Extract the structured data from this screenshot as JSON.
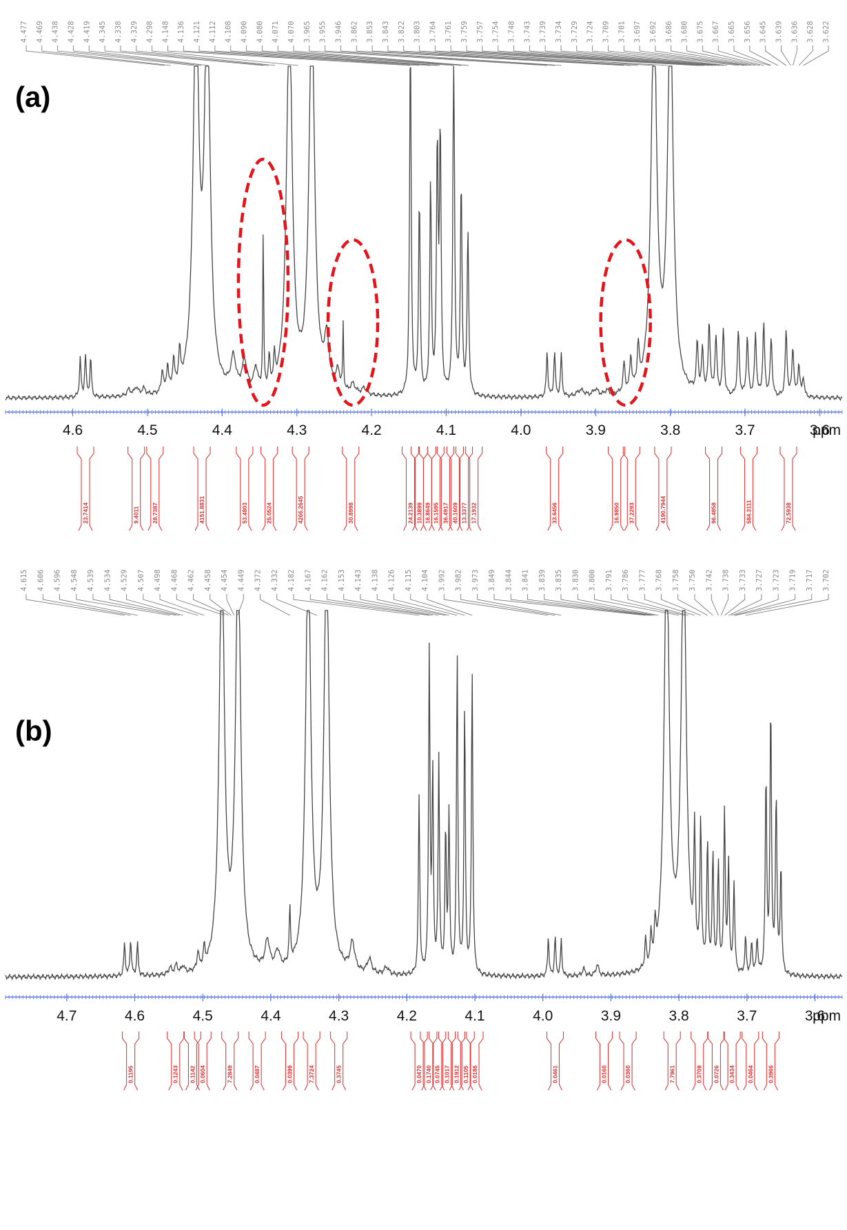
{
  "figure": {
    "trace_color": "#444444",
    "axis_color": "#5b78e8",
    "integral_color": "#e03a3a",
    "highlight_color": "#e3141b"
  },
  "chart_data": [
    {
      "type": "line",
      "panel_label": "(a)",
      "xlabel": "ppm",
      "xlim": [
        4.69,
        3.57
      ],
      "x_reversed": true,
      "x_ticks": [
        4.6,
        4.5,
        4.4,
        4.3,
        4.2,
        4.1,
        4.0,
        3.9,
        3.8,
        3.7,
        3.6
      ],
      "x_tick_labels": [
        "4.6",
        "4.5",
        "4.4",
        "4.3",
        "4.2",
        "4.1",
        "4.0",
        "3.9",
        "3.8",
        "3.7",
        "3.6"
      ],
      "peak_labels": [
        "4.477",
        "4.469",
        "4.438",
        "4.428",
        "4.419",
        "4.345",
        "4.338",
        "4.329",
        "4.298",
        "4.148",
        "4.136",
        "4.121",
        "4.112",
        "4.108",
        "4.090",
        "4.080",
        "4.071",
        "4.070",
        "3.965",
        "3.955",
        "3.946",
        "3.862",
        "3.853",
        "3.843",
        "3.822",
        "3.803",
        "3.764",
        "3.761",
        "3.759",
        "3.757",
        "3.754",
        "3.748",
        "3.743",
        "3.739",
        "3.734",
        "3.729",
        "3.724",
        "3.709",
        "3.701",
        "3.697",
        "3.692",
        "3.686",
        "3.680",
        "3.675",
        "3.667",
        "3.665",
        "3.656",
        "3.645",
        "3.639",
        "3.636",
        "3.628",
        "3.622"
      ],
      "peaks": [
        {
          "x": 4.59,
          "h": 0.12,
          "w": 0.0012
        },
        {
          "x": 4.583,
          "h": 0.13,
          "w": 0.0012
        },
        {
          "x": 4.576,
          "h": 0.12,
          "w": 0.0012
        },
        {
          "x": 4.525,
          "h": 0.02,
          "w": 0.003
        },
        {
          "x": 4.515,
          "h": 0.025,
          "w": 0.003
        },
        {
          "x": 4.505,
          "h": 0.02,
          "w": 0.003
        },
        {
          "x": 4.48,
          "h": 0.07,
          "w": 0.0015
        },
        {
          "x": 4.473,
          "h": 0.08,
          "w": 0.0015
        },
        {
          "x": 4.465,
          "h": 0.09,
          "w": 0.0015
        },
        {
          "x": 4.457,
          "h": 0.1,
          "w": 0.0015
        },
        {
          "x": 4.435,
          "h": 1.2,
          "w": 0.0045
        },
        {
          "x": 4.42,
          "h": 1.2,
          "w": 0.0045
        },
        {
          "x": 4.385,
          "h": 0.1,
          "w": 0.004
        },
        {
          "x": 4.37,
          "h": 0.09,
          "w": 0.004
        },
        {
          "x": 4.355,
          "h": 0.07,
          "w": 0.003
        },
        {
          "x": 4.345,
          "h": 0.5,
          "w": 0.0007
        },
        {
          "x": 4.337,
          "h": 0.09,
          "w": 0.0012
        },
        {
          "x": 4.33,
          "h": 0.08,
          "w": 0.0012
        },
        {
          "x": 4.31,
          "h": 1.2,
          "w": 0.0045
        },
        {
          "x": 4.28,
          "h": 1.2,
          "w": 0.0045
        },
        {
          "x": 4.26,
          "h": 0.15,
          "w": 0.004
        },
        {
          "x": 4.245,
          "h": 0.06,
          "w": 0.003
        },
        {
          "x": 4.238,
          "h": 0.2,
          "w": 0.0007
        },
        {
          "x": 4.225,
          "h": 0.03,
          "w": 0.004
        },
        {
          "x": 4.21,
          "h": 0.02,
          "w": 0.004
        },
        {
          "x": 4.148,
          "h": 1.1,
          "w": 0.0013
        },
        {
          "x": 4.136,
          "h": 0.6,
          "w": 0.0013
        },
        {
          "x": 4.121,
          "h": 0.65,
          "w": 0.0013
        },
        {
          "x": 4.112,
          "h": 0.75,
          "w": 0.0013
        },
        {
          "x": 4.108,
          "h": 0.8,
          "w": 0.0013
        },
        {
          "x": 4.09,
          "h": 1.1,
          "w": 0.0013
        },
        {
          "x": 4.08,
          "h": 0.65,
          "w": 0.0013
        },
        {
          "x": 4.071,
          "h": 0.5,
          "w": 0.0013
        },
        {
          "x": 3.965,
          "h": 0.14,
          "w": 0.0012
        },
        {
          "x": 3.955,
          "h": 0.14,
          "w": 0.0012
        },
        {
          "x": 3.946,
          "h": 0.13,
          "w": 0.0012
        },
        {
          "x": 3.92,
          "h": 0.02,
          "w": 0.006
        },
        {
          "x": 3.9,
          "h": 0.02,
          "w": 0.004
        },
        {
          "x": 3.885,
          "h": 0.015,
          "w": 0.003
        },
        {
          "x": 3.862,
          "h": 0.09,
          "w": 0.0015
        },
        {
          "x": 3.853,
          "h": 0.1,
          "w": 0.0015
        },
        {
          "x": 3.843,
          "h": 0.12,
          "w": 0.0015
        },
        {
          "x": 3.822,
          "h": 1.2,
          "w": 0.0045
        },
        {
          "x": 3.8,
          "h": 1.2,
          "w": 0.0045
        },
        {
          "x": 3.764,
          "h": 0.15,
          "w": 0.0015
        },
        {
          "x": 3.757,
          "h": 0.13,
          "w": 0.0015
        },
        {
          "x": 3.748,
          "h": 0.22,
          "w": 0.0015
        },
        {
          "x": 3.739,
          "h": 0.18,
          "w": 0.0015
        },
        {
          "x": 3.729,
          "h": 0.2,
          "w": 0.0015
        },
        {
          "x": 3.709,
          "h": 0.2,
          "w": 0.0015
        },
        {
          "x": 3.697,
          "h": 0.18,
          "w": 0.0015
        },
        {
          "x": 3.686,
          "h": 0.19,
          "w": 0.0015
        },
        {
          "x": 3.675,
          "h": 0.22,
          "w": 0.0015
        },
        {
          "x": 3.665,
          "h": 0.18,
          "w": 0.0015
        },
        {
          "x": 3.645,
          "h": 0.2,
          "w": 0.0015
        },
        {
          "x": 3.636,
          "h": 0.15,
          "w": 0.0015
        },
        {
          "x": 3.628,
          "h": 0.1,
          "w": 0.0015
        },
        {
          "x": 3.622,
          "h": 0.06,
          "w": 0.0015
        }
      ],
      "integrals": [
        {
          "x": 4.583,
          "label": "23.7414"
        },
        {
          "x": 4.515,
          "label": "9.4011"
        },
        {
          "x": 4.49,
          "label": "28.7387"
        },
        {
          "x": 4.427,
          "label": "4151.8831"
        },
        {
          "x": 4.37,
          "label": "53.4803"
        },
        {
          "x": 4.337,
          "label": "25.0524"
        },
        {
          "x": 4.295,
          "label": "4266.2645"
        },
        {
          "x": 4.228,
          "label": "30.8998"
        },
        {
          "x": 4.148,
          "label": "24.2139"
        },
        {
          "x": 4.136,
          "label": "10.3899"
        },
        {
          "x": 4.125,
          "label": "16.8649"
        },
        {
          "x": 4.114,
          "label": "16.1595"
        },
        {
          "x": 4.101,
          "label": "36.4917"
        },
        {
          "x": 4.088,
          "label": "40.1609"
        },
        {
          "x": 4.076,
          "label": "13.3377"
        },
        {
          "x": 4.063,
          "label": "17.1932"
        },
        {
          "x": 3.955,
          "label": "33.6456"
        },
        {
          "x": 3.872,
          "label": "16.9850"
        },
        {
          "x": 3.852,
          "label": "37.2293"
        },
        {
          "x": 3.81,
          "label": "4190.7944"
        },
        {
          "x": 3.742,
          "label": "96.4858"
        },
        {
          "x": 3.695,
          "label": "584.3111"
        },
        {
          "x": 3.642,
          "label": "72.5938"
        }
      ],
      "highlighted_regions": [
        {
          "x_center": 4.345,
          "y_low": 0.0,
          "y_high": 0.72
        },
        {
          "x_center": 4.225,
          "y_low": 0.0,
          "y_high": 0.47
        },
        {
          "x_center": 3.86,
          "y_low": 0.0,
          "y_high": 0.47
        }
      ]
    },
    {
      "type": "line",
      "panel_label": "(b)",
      "xlabel": "ppm",
      "xlim": [
        4.79,
        3.56
      ],
      "x_reversed": true,
      "x_ticks": [
        4.7,
        4.6,
        4.5,
        4.4,
        4.3,
        4.2,
        4.1,
        4.0,
        3.9,
        3.8,
        3.7,
        3.6
      ],
      "x_tick_labels": [
        "4.7",
        "4.6",
        "4.5",
        "4.4",
        "4.3",
        "4.2",
        "4.1",
        "4.0",
        "3.9",
        "3.8",
        "3.7",
        "3.6"
      ],
      "peak_labels": [
        "4.615",
        "4.606",
        "4.596",
        "4.548",
        "4.539",
        "4.534",
        "4.529",
        "4.507",
        "4.498",
        "4.468",
        "4.462",
        "4.458",
        "4.454",
        "4.449",
        "4.372",
        "4.332",
        "4.182",
        "4.167",
        "4.162",
        "4.153",
        "4.143",
        "4.138",
        "4.126",
        "4.115",
        "4.104",
        "3.992",
        "3.982",
        "3.973",
        "3.849",
        "3.844",
        "3.841",
        "3.839",
        "3.835",
        "3.830",
        "3.800",
        "3.791",
        "3.786",
        "3.777",
        "3.768",
        "3.758",
        "3.750",
        "3.742",
        "3.738",
        "3.733",
        "3.727",
        "3.723",
        "3.719",
        "3.717",
        "3.702"
      ],
      "peaks": [
        {
          "x": 4.615,
          "h": 0.09,
          "w": 0.0013
        },
        {
          "x": 4.606,
          "h": 0.1,
          "w": 0.0013
        },
        {
          "x": 4.596,
          "h": 0.09,
          "w": 0.0013
        },
        {
          "x": 4.548,
          "h": 0.02,
          "w": 0.0025
        },
        {
          "x": 4.539,
          "h": 0.025,
          "w": 0.0025
        },
        {
          "x": 4.529,
          "h": 0.02,
          "w": 0.0025
        },
        {
          "x": 4.507,
          "h": 0.05,
          "w": 0.0015
        },
        {
          "x": 4.498,
          "h": 0.05,
          "w": 0.0015
        },
        {
          "x": 4.472,
          "h": 1.2,
          "w": 0.0045
        },
        {
          "x": 4.448,
          "h": 1.2,
          "w": 0.0045
        },
        {
          "x": 4.405,
          "h": 0.08,
          "w": 0.004
        },
        {
          "x": 4.39,
          "h": 0.05,
          "w": 0.004
        },
        {
          "x": 4.372,
          "h": 0.15,
          "w": 0.0012
        },
        {
          "x": 4.345,
          "h": 1.2,
          "w": 0.0045
        },
        {
          "x": 4.318,
          "h": 1.2,
          "w": 0.0045
        },
        {
          "x": 4.28,
          "h": 0.08,
          "w": 0.004
        },
        {
          "x": 4.255,
          "h": 0.04,
          "w": 0.004
        },
        {
          "x": 4.23,
          "h": 0.02,
          "w": 0.004
        },
        {
          "x": 4.182,
          "h": 0.5,
          "w": 0.0012
        },
        {
          "x": 4.167,
          "h": 0.9,
          "w": 0.0012
        },
        {
          "x": 4.162,
          "h": 0.55,
          "w": 0.0012
        },
        {
          "x": 4.153,
          "h": 0.6,
          "w": 0.0012
        },
        {
          "x": 4.143,
          "h": 0.4,
          "w": 0.0012
        },
        {
          "x": 4.138,
          "h": 0.45,
          "w": 0.0012
        },
        {
          "x": 4.126,
          "h": 0.9,
          "w": 0.0012
        },
        {
          "x": 4.115,
          "h": 0.75,
          "w": 0.0012
        },
        {
          "x": 4.104,
          "h": 0.85,
          "w": 0.0012
        },
        {
          "x": 3.992,
          "h": 0.11,
          "w": 0.0012
        },
        {
          "x": 3.982,
          "h": 0.11,
          "w": 0.0012
        },
        {
          "x": 3.973,
          "h": 0.1,
          "w": 0.0012
        },
        {
          "x": 3.94,
          "h": 0.02,
          "w": 0.0025
        },
        {
          "x": 3.92,
          "h": 0.03,
          "w": 0.0025
        },
        {
          "x": 3.849,
          "h": 0.08,
          "w": 0.0013
        },
        {
          "x": 3.841,
          "h": 0.08,
          "w": 0.0013
        },
        {
          "x": 3.835,
          "h": 0.09,
          "w": 0.0013
        },
        {
          "x": 3.818,
          "h": 1.2,
          "w": 0.0045
        },
        {
          "x": 3.793,
          "h": 1.2,
          "w": 0.0045
        },
        {
          "x": 3.777,
          "h": 0.35,
          "w": 0.0013
        },
        {
          "x": 3.768,
          "h": 0.4,
          "w": 0.0013
        },
        {
          "x": 3.758,
          "h": 0.35,
          "w": 0.0013
        },
        {
          "x": 3.75,
          "h": 0.32,
          "w": 0.0013
        },
        {
          "x": 3.742,
          "h": 0.3,
          "w": 0.0013
        },
        {
          "x": 3.733,
          "h": 0.45,
          "w": 0.0013
        },
        {
          "x": 3.727,
          "h": 0.3,
          "w": 0.0013
        },
        {
          "x": 3.719,
          "h": 0.25,
          "w": 0.0013
        },
        {
          "x": 3.702,
          "h": 0.1,
          "w": 0.0013
        },
        {
          "x": 3.693,
          "h": 0.09,
          "w": 0.0013
        },
        {
          "x": 3.685,
          "h": 0.1,
          "w": 0.0013
        },
        {
          "x": 3.672,
          "h": 0.55,
          "w": 0.0013
        },
        {
          "x": 3.665,
          "h": 0.75,
          "w": 0.0013
        },
        {
          "x": 3.657,
          "h": 0.5,
          "w": 0.0013
        },
        {
          "x": 3.65,
          "h": 0.3,
          "w": 0.0013
        }
      ],
      "integrals": [
        {
          "x": 4.606,
          "label": "0.1195"
        },
        {
          "x": 4.54,
          "label": "0.1243"
        },
        {
          "x": 4.515,
          "label": "0.1142"
        },
        {
          "x": 4.5,
          "label": "0.0604"
        },
        {
          "x": 4.46,
          "label": "7.2849"
        },
        {
          "x": 4.42,
          "label": "0.0487"
        },
        {
          "x": 4.372,
          "label": "0.0399"
        },
        {
          "x": 4.34,
          "label": "7.3724"
        },
        {
          "x": 4.3,
          "label": "0.3745"
        },
        {
          "x": 4.182,
          "label": "0.0470"
        },
        {
          "x": 4.168,
          "label": "0.1740"
        },
        {
          "x": 4.155,
          "label": "0.0745"
        },
        {
          "x": 4.141,
          "label": "0.1017"
        },
        {
          "x": 4.127,
          "label": "0.1912"
        },
        {
          "x": 4.113,
          "label": "0.1105"
        },
        {
          "x": 4.1,
          "label": "0.0186"
        },
        {
          "x": 3.982,
          "label": "0.0461"
        },
        {
          "x": 3.91,
          "label": "0.0160"
        },
        {
          "x": 3.875,
          "label": "0.0360"
        },
        {
          "x": 3.81,
          "label": "7.7961"
        },
        {
          "x": 3.77,
          "label": "0.3708"
        },
        {
          "x": 3.745,
          "label": "0.0726"
        },
        {
          "x": 3.722,
          "label": "0.3434"
        },
        {
          "x": 3.695,
          "label": "0.0464"
        },
        {
          "x": 3.665,
          "label": "0.3966"
        }
      ],
      "highlighted_regions": []
    }
  ]
}
